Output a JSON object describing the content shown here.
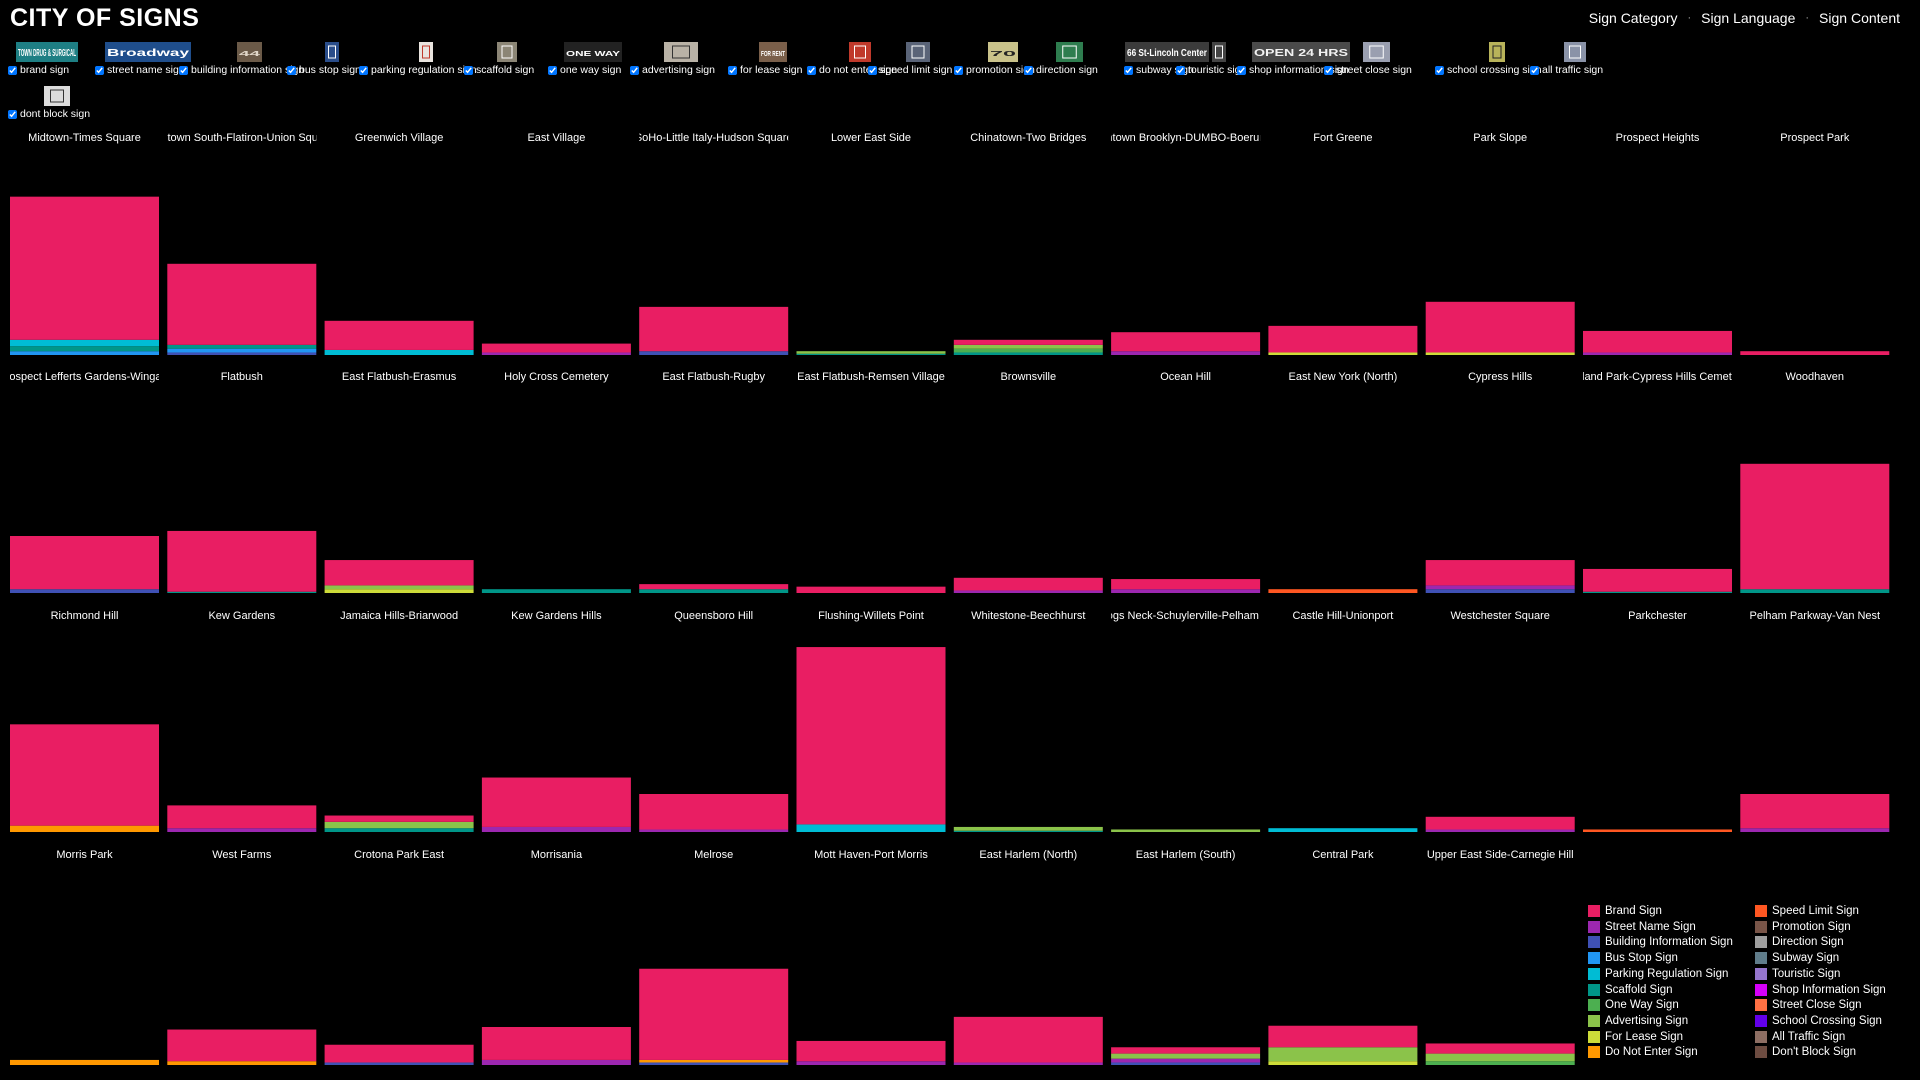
{
  "header": {
    "title": "CITY OF SIGNS",
    "nav": [
      "Sign Category",
      "Sign Language",
      "Sign Content"
    ]
  },
  "filters": [
    {
      "label": "brand sign",
      "checked": true,
      "thumb": {
        "bg": "#1e7f84",
        "text": "TOWN DRUG & SURGICAL",
        "fg": "#ffffff"
      }
    },
    {
      "label": "street name sign",
      "checked": true,
      "thumb": {
        "bg": "#1f4e8c",
        "text": "Broadway",
        "fg": "#ffffff"
      }
    },
    {
      "label": "building information sign",
      "checked": true,
      "thumb": {
        "bg": "#6b5a48",
        "text": "44",
        "fg": "#e0d6c8"
      }
    },
    {
      "label": "bus stop sign",
      "checked": true,
      "thumb": {
        "bg": "#2a4d8a",
        "text": "",
        "fg": "#ffffff"
      }
    },
    {
      "label": "parking regulation sign",
      "checked": true,
      "thumb": {
        "bg": "#e9e4df",
        "text": "",
        "fg": "#c0392b"
      }
    },
    {
      "label": "scaffold sign",
      "checked": true,
      "thumb": {
        "bg": "#8c8676",
        "text": "",
        "fg": "#ffffff"
      }
    },
    {
      "label": "one way sign",
      "checked": true,
      "thumb": {
        "bg": "#222222",
        "text": "ONE WAY",
        "fg": "#ffffff"
      }
    },
    {
      "label": "advertising sign",
      "checked": true,
      "thumb": {
        "bg": "#b9b2a6",
        "text": "",
        "fg": "#333333"
      }
    },
    {
      "label": "for lease sign",
      "checked": true,
      "thumb": {
        "bg": "#7a5f4a",
        "text": "FOR RENT",
        "fg": "#ffffff"
      }
    },
    {
      "label": "do not enter sign",
      "checked": true,
      "thumb": {
        "bg": "#c0392b",
        "text": "",
        "fg": "#ffffff"
      }
    },
    {
      "label": "speed limit sign",
      "checked": true,
      "thumb": {
        "bg": "#5a6478",
        "text": "",
        "fg": "#ffffff"
      }
    },
    {
      "label": "promotion sign",
      "checked": true,
      "thumb": {
        "bg": "#c9c28a",
        "text": "70",
        "fg": "#222222"
      }
    },
    {
      "label": "direction sign",
      "checked": true,
      "thumb": {
        "bg": "#2e7d4f",
        "text": "",
        "fg": "#ffffff"
      }
    },
    {
      "label": "subway sign",
      "checked": true,
      "thumb": {
        "bg": "#3b3b3b",
        "text": "66 St-Lincoln Center",
        "fg": "#ffffff"
      }
    },
    {
      "label": "touristic sign",
      "checked": true,
      "thumb": {
        "bg": "#444444",
        "text": "",
        "fg": "#ffffff"
      }
    },
    {
      "label": "shop information sign",
      "checked": true,
      "thumb": {
        "bg": "#4a4a4a",
        "text": "OPEN 24 HRS",
        "fg": "#f2f2f2"
      }
    },
    {
      "label": "street close sign",
      "checked": true,
      "thumb": {
        "bg": "#9a9fb0",
        "text": "",
        "fg": "#ffffff"
      }
    },
    {
      "label": "school crossing sign",
      "checked": true,
      "thumb": {
        "bg": "#b8b35a",
        "text": "",
        "fg": "#222222"
      }
    },
    {
      "label": "all traffic sign",
      "checked": true,
      "thumb": {
        "bg": "#8a93a8",
        "text": "",
        "fg": "#ffffff"
      }
    },
    {
      "label": "dont block sign",
      "checked": true,
      "thumb": {
        "bg": "#dcdcdc",
        "text": "",
        "fg": "#333333"
      }
    }
  ],
  "categories": [
    {
      "name": "Brand Sign",
      "color": "#e91e63"
    },
    {
      "name": "Street Name Sign",
      "color": "#9c27b0"
    },
    {
      "name": "Building Information Sign",
      "color": "#3f51b5"
    },
    {
      "name": "Bus Stop Sign",
      "color": "#2196f3"
    },
    {
      "name": "Parking Regulation Sign",
      "color": "#00bcd4"
    },
    {
      "name": "Scaffold Sign",
      "color": "#009688"
    },
    {
      "name": "One Way Sign",
      "color": "#4caf50"
    },
    {
      "name": "Advertising Sign",
      "color": "#8bc34a"
    },
    {
      "name": "For Lease Sign",
      "color": "#cddc39"
    },
    {
      "name": "Do Not Enter Sign",
      "color": "#ff9800"
    },
    {
      "name": "Speed Limit Sign",
      "color": "#ff5722"
    },
    {
      "name": "Promotion Sign",
      "color": "#795548"
    },
    {
      "name": "Direction Sign",
      "color": "#9e9e9e"
    },
    {
      "name": "Subway Sign",
      "color": "#607d8b"
    },
    {
      "name": "Touristic Sign",
      "color": "#9575cd"
    },
    {
      "name": "Shop Information Sign",
      "color": "#d500f9"
    },
    {
      "name": "Street Close Sign",
      "color": "#ff7043"
    },
    {
      "name": "School Crossing Sign",
      "color": "#6200ea"
    },
    {
      "name": "All Traffic Sign",
      "color": "#8d6e63"
    },
    {
      "name": "Don't Block Sign",
      "color": "#6d4c41"
    }
  ],
  "chart_data": {
    "type": "bar",
    "stacked": true,
    "ylim": [
      0,
      150
    ],
    "neighborhoods": [
      {
        "name": "Midtown-Times Square",
        "stack": [
          [
            "Brand Sign",
            113
          ],
          [
            "Parking Regulation Sign",
            5
          ],
          [
            "Scaffold Sign",
            4
          ],
          [
            "Bus Stop Sign",
            3
          ]
        ]
      },
      {
        "name": "Midtown South-Flatiron-Union Square",
        "stack": [
          [
            "Brand Sign",
            64
          ],
          [
            "Scaffold Sign",
            3
          ],
          [
            "Bus Stop Sign",
            3
          ],
          [
            "Building Information Sign",
            2
          ]
        ]
      },
      {
        "name": "Greenwich Village",
        "stack": [
          [
            "Brand Sign",
            23
          ],
          [
            "Parking Regulation Sign",
            4
          ]
        ]
      },
      {
        "name": "East Village",
        "stack": [
          [
            "Brand Sign",
            7
          ],
          [
            "Street Name Sign",
            2
          ]
        ]
      },
      {
        "name": "SoHo-Little Italy-Hudson Square",
        "stack": [
          [
            "Brand Sign",
            35
          ],
          [
            "Building Information Sign",
            3
          ]
        ]
      },
      {
        "name": "Lower East Side",
        "stack": [
          [
            "Advertising Sign",
            2
          ],
          [
            "Scaffold Sign",
            1
          ]
        ]
      },
      {
        "name": "Chinatown-Two Bridges",
        "stack": [
          [
            "Brand Sign",
            4
          ],
          [
            "Advertising Sign",
            3
          ],
          [
            "One Way Sign",
            3
          ],
          [
            "Scaffold Sign",
            2
          ]
        ]
      },
      {
        "name": "Downtown Brooklyn-DUMBO-Boerum Hill",
        "stack": [
          [
            "Brand Sign",
            15
          ],
          [
            "Street Name Sign",
            3
          ]
        ]
      },
      {
        "name": "Fort Greene",
        "stack": [
          [
            "Brand Sign",
            21
          ],
          [
            "For Lease Sign",
            2
          ]
        ]
      },
      {
        "name": "Park Slope",
        "stack": [
          [
            "Brand Sign",
            40
          ],
          [
            "For Lease Sign",
            2
          ]
        ]
      },
      {
        "name": "Prospect Heights",
        "stack": [
          [
            "Brand Sign",
            17
          ],
          [
            "Street Name Sign",
            2
          ]
        ]
      },
      {
        "name": "Prospect Park",
        "stack": [
          [
            "Brand Sign",
            3
          ]
        ]
      },
      {
        "name": "Prospect Lefferts Gardens-Wingate",
        "stack": [
          [
            "Brand Sign",
            42
          ],
          [
            "Building Information Sign",
            3
          ]
        ]
      },
      {
        "name": "Flatbush",
        "stack": [
          [
            "Brand Sign",
            48
          ],
          [
            "Scaffold Sign",
            1
          ]
        ]
      },
      {
        "name": "East Flatbush-Erasmus",
        "stack": [
          [
            "Brand Sign",
            20
          ],
          [
            "Advertising Sign",
            3
          ],
          [
            "For Lease Sign",
            3
          ]
        ]
      },
      {
        "name": "Holy Cross Cemetery",
        "stack": [
          [
            "Scaffold Sign",
            3
          ]
        ]
      },
      {
        "name": "East Flatbush-Rugby",
        "stack": [
          [
            "Brand Sign",
            4
          ],
          [
            "Scaffold Sign",
            3
          ]
        ]
      },
      {
        "name": "East Flatbush-Remsen Village",
        "stack": [
          [
            "Brand Sign",
            5
          ]
        ]
      },
      {
        "name": "Brownsville",
        "stack": [
          [
            "Brand Sign",
            10
          ],
          [
            "Street Name Sign",
            2
          ]
        ]
      },
      {
        "name": "Ocean Hill",
        "stack": [
          [
            "Brand Sign",
            8
          ],
          [
            "Street Name Sign",
            3
          ]
        ]
      },
      {
        "name": "East New York (North)",
        "stack": [
          [
            "Speed Limit Sign",
            3
          ]
        ]
      },
      {
        "name": "Cypress Hills",
        "stack": [
          [
            "Brand Sign",
            20
          ],
          [
            "Street Name Sign",
            3
          ],
          [
            "Building Information Sign",
            3
          ]
        ]
      },
      {
        "name": "Highland Park-Cypress Hills Cemeteries",
        "stack": [
          [
            "Brand Sign",
            18
          ],
          [
            "Scaffold Sign",
            1
          ]
        ]
      },
      {
        "name": "Woodhaven",
        "stack": [
          [
            "Brand Sign",
            99
          ],
          [
            "Scaffold Sign",
            3
          ]
        ]
      },
      {
        "name": "Richmond Hill",
        "stack": [
          [
            "Brand Sign",
            80
          ],
          [
            "Do Not Enter Sign",
            5
          ]
        ]
      },
      {
        "name": "Kew Gardens",
        "stack": [
          [
            "Brand Sign",
            18
          ],
          [
            "Street Name Sign",
            3
          ]
        ]
      },
      {
        "name": "Jamaica Hills-Briarwood",
        "stack": [
          [
            "Brand Sign",
            5
          ],
          [
            "Advertising Sign",
            5
          ],
          [
            "Scaffold Sign",
            3
          ]
        ]
      },
      {
        "name": "Kew Gardens Hills",
        "stack": [
          [
            "Brand Sign",
            39
          ],
          [
            "Street Name Sign",
            4
          ]
        ]
      },
      {
        "name": "Queensboro Hill",
        "stack": [
          [
            "Brand Sign",
            28
          ],
          [
            "Street Name Sign",
            2
          ]
        ]
      },
      {
        "name": "Flushing-Willets Point",
        "stack": [
          [
            "Brand Sign",
            140
          ],
          [
            "Parking Regulation Sign",
            6
          ]
        ]
      },
      {
        "name": "Whitestone-Beechhurst",
        "stack": [
          [
            "Advertising Sign",
            3
          ],
          [
            "Scaffold Sign",
            1
          ]
        ]
      },
      {
        "name": "Throgs Neck-Schuylerville-Pelham Bay",
        "stack": [
          [
            "Advertising Sign",
            2
          ]
        ]
      },
      {
        "name": "Castle Hill-Unionport",
        "stack": [
          [
            "Parking Regulation Sign",
            3
          ]
        ]
      },
      {
        "name": "Westchester Square",
        "stack": [
          [
            "Brand Sign",
            10
          ],
          [
            "Street Name Sign",
            2
          ]
        ]
      },
      {
        "name": "Parkchester",
        "stack": [
          [
            "Speed Limit Sign",
            2
          ]
        ]
      },
      {
        "name": "Pelham Parkway-Van Nest",
        "stack": [
          [
            "Brand Sign",
            27
          ],
          [
            "Street Name Sign",
            3
          ]
        ]
      },
      {
        "name": "Morris Park",
        "stack": [
          [
            "Do Not Enter Sign",
            4
          ]
        ]
      },
      {
        "name": "West Farms",
        "stack": [
          [
            "Brand Sign",
            25
          ],
          [
            "Do Not Enter Sign",
            3
          ]
        ]
      },
      {
        "name": "Crotona Park East",
        "stack": [
          [
            "Brand Sign",
            14
          ],
          [
            "Building Information Sign",
            2
          ]
        ]
      },
      {
        "name": "Morrisania",
        "stack": [
          [
            "Brand Sign",
            26
          ],
          [
            "Street Name Sign",
            4
          ]
        ]
      },
      {
        "name": "Melrose",
        "stack": [
          [
            "Brand Sign",
            72
          ],
          [
            "Do Not Enter Sign",
            2
          ],
          [
            "Building Information Sign",
            2
          ]
        ]
      },
      {
        "name": "Mott Haven-Port Morris",
        "stack": [
          [
            "Brand Sign",
            16
          ],
          [
            "Street Name Sign",
            3
          ]
        ]
      },
      {
        "name": "East Harlem (North)",
        "stack": [
          [
            "Brand Sign",
            36
          ],
          [
            "Street Name Sign",
            2
          ]
        ]
      },
      {
        "name": "East Harlem (South)",
        "stack": [
          [
            "Brand Sign",
            5
          ],
          [
            "Advertising Sign",
            4
          ],
          [
            "Street Name Sign",
            3
          ],
          [
            "Building Information Sign",
            2
          ]
        ]
      },
      {
        "name": "Central Park",
        "stack": [
          [
            "Brand Sign",
            17
          ],
          [
            "Advertising Sign",
            11
          ],
          [
            "For Lease Sign",
            3
          ]
        ]
      },
      {
        "name": "Upper East Side-Carnegie Hill",
        "stack": [
          [
            "Brand Sign",
            8
          ],
          [
            "Advertising Sign",
            6
          ],
          [
            "One Way Sign",
            3
          ]
        ]
      }
    ]
  }
}
